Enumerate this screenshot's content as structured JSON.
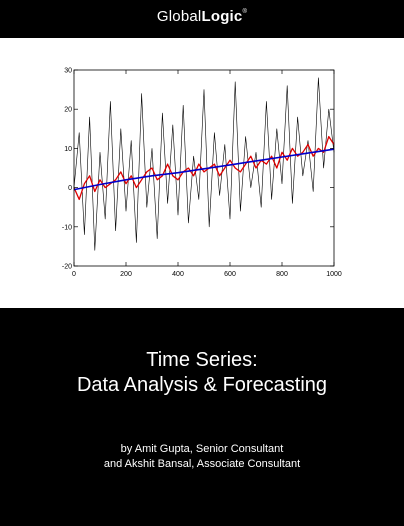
{
  "header": {
    "brand_light": "Global",
    "brand_bold": "Logic",
    "brand_mark": "®"
  },
  "title": {
    "line1": "Time Series:",
    "line2": "Data Analysis & Forecasting"
  },
  "authors": {
    "line1": "by Amit Gupta, Senior Consultant",
    "line2": "and Akshit Bansal, Associate Consultant"
  },
  "colors": {
    "background": "#000000",
    "raw_series": "#000000",
    "smoothed_series": "#e00000",
    "trend_series": "#0000cc"
  },
  "chart_data": {
    "type": "line",
    "title": "",
    "xlabel": "",
    "ylabel": "",
    "xlim": [
      0,
      1000
    ],
    "ylim": [
      -20,
      30
    ],
    "xticks": [
      0,
      200,
      400,
      600,
      800,
      1000
    ],
    "yticks": [
      -20,
      -10,
      0,
      10,
      20,
      30
    ],
    "grid": false,
    "legend": "none",
    "series": [
      {
        "style": "raw",
        "x": [
          0,
          20,
          40,
          60,
          80,
          100,
          120,
          140,
          160,
          180,
          200,
          220,
          240,
          260,
          280,
          300,
          320,
          340,
          360,
          380,
          400,
          420,
          440,
          460,
          480,
          500,
          520,
          540,
          560,
          580,
          600,
          620,
          640,
          660,
          680,
          700,
          720,
          740,
          760,
          780,
          800,
          820,
          840,
          860,
          880,
          900,
          920,
          940,
          960,
          980,
          1000
        ],
        "y": [
          0,
          14,
          -12,
          18,
          -16,
          9,
          -8,
          22,
          -11,
          15,
          -6,
          12,
          -14,
          24,
          -5,
          10,
          -13,
          19,
          -4,
          16,
          -7,
          21,
          -9,
          8,
          -3,
          25,
          -10,
          14,
          -2,
          11,
          -8,
          27,
          -6,
          13,
          0,
          9,
          -5,
          22,
          -3,
          15,
          1,
          26,
          -4,
          18,
          3,
          12,
          -1,
          28,
          5,
          20,
          9
        ]
      },
      {
        "style": "smoothed",
        "x": [
          0,
          20,
          40,
          60,
          80,
          100,
          120,
          140,
          160,
          180,
          200,
          220,
          240,
          260,
          280,
          300,
          320,
          340,
          360,
          380,
          400,
          420,
          440,
          460,
          480,
          500,
          520,
          540,
          560,
          580,
          600,
          620,
          640,
          660,
          680,
          700,
          720,
          740,
          760,
          780,
          800,
          820,
          840,
          860,
          880,
          900,
          920,
          940,
          960,
          980,
          1000
        ],
        "y": [
          0,
          -3,
          1,
          3,
          -1,
          2,
          0,
          1,
          2,
          4,
          1,
          3,
          0,
          2,
          4,
          5,
          2,
          3,
          6,
          3,
          2,
          4,
          5,
          3,
          6,
          4,
          5,
          6,
          3,
          5,
          7,
          5,
          4,
          6,
          8,
          5,
          7,
          6,
          8,
          5,
          9,
          7,
          10,
          8,
          9,
          11,
          8,
          10,
          9,
          13,
          11
        ]
      },
      {
        "style": "trend",
        "x": [
          0,
          100,
          200,
          300,
          400,
          500,
          600,
          700,
          800,
          900,
          1000
        ],
        "y": [
          -0.5,
          0.8,
          2.0,
          3.0,
          3.8,
          4.8,
          5.8,
          6.8,
          7.8,
          8.8,
          9.8
        ]
      }
    ]
  }
}
